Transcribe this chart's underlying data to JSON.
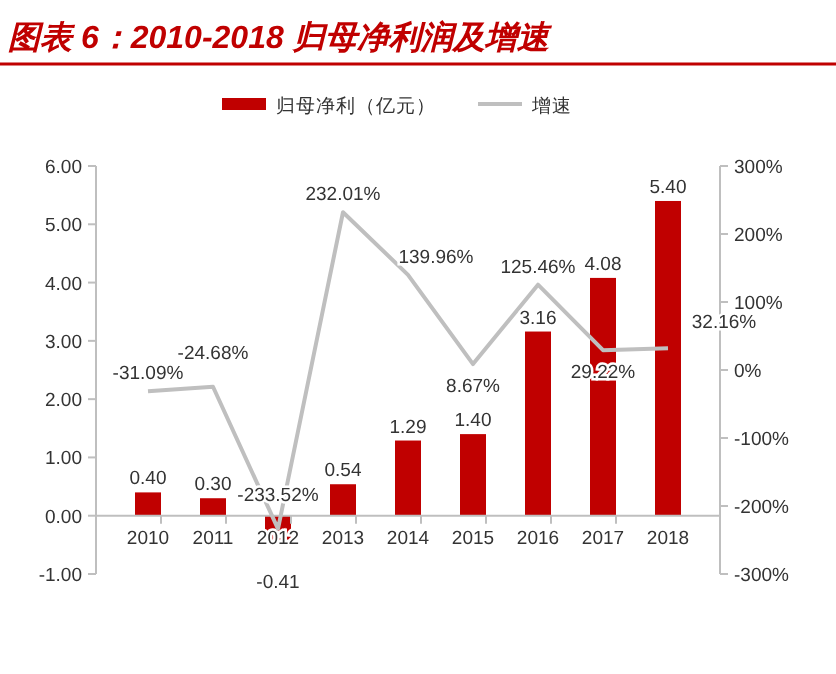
{
  "chart_data": {
    "type": "bar",
    "title": "图表 6：2010-2018 归母净利润及增速",
    "categories": [
      "2010",
      "2011",
      "2012",
      "2013",
      "2014",
      "2015",
      "2016",
      "2017",
      "2018"
    ],
    "series": [
      {
        "name": "归母净利（亿元）",
        "color": "#c00000",
        "values": [
          0.4,
          0.3,
          -0.41,
          0.54,
          1.29,
          1.4,
          3.16,
          4.08,
          5.4
        ],
        "value_labels": [
          "0.40",
          "0.30",
          "-0.41",
          "0.54",
          "1.29",
          "1.40",
          "3.16",
          "4.08",
          "5.40"
        ]
      },
      {
        "name": "增速",
        "type": "line",
        "axis": "y2",
        "color": "#bfbfbf",
        "values": [
          -31.09,
          -24.68,
          -233.52,
          232.01,
          139.96,
          8.67,
          125.46,
          29.22,
          32.16
        ],
        "value_labels": [
          "-31.09%",
          "-24.68%",
          "-233.52%",
          "232.01%",
          "139.96%",
          "8.67%",
          "125.46%",
          "29.22%",
          "32.16%"
        ]
      }
    ],
    "ylim": [
      -1,
      6
    ],
    "yticks": [
      {
        "value": -1,
        "label": "-1.00"
      },
      {
        "value": 0,
        "label": "0.00"
      },
      {
        "value": 1,
        "label": "1.00"
      },
      {
        "value": 2,
        "label": "2.00"
      },
      {
        "value": 3,
        "label": "3.00"
      },
      {
        "value": 4,
        "label": "4.00"
      },
      {
        "value": 5,
        "label": "5.00"
      },
      {
        "value": 6,
        "label": "6.00"
      }
    ],
    "y2lim": [
      -300,
      300
    ],
    "y2ticks": [
      {
        "value": -300,
        "label": "-300%"
      },
      {
        "value": -200,
        "label": "-200%"
      },
      {
        "value": -100,
        "label": "-100%"
      },
      {
        "value": 0,
        "label": "0%"
      },
      {
        "value": 100,
        "label": "100%"
      },
      {
        "value": 200,
        "label": "200%"
      },
      {
        "value": 300,
        "label": "300%"
      }
    ],
    "legend": "top",
    "grid": false
  }
}
